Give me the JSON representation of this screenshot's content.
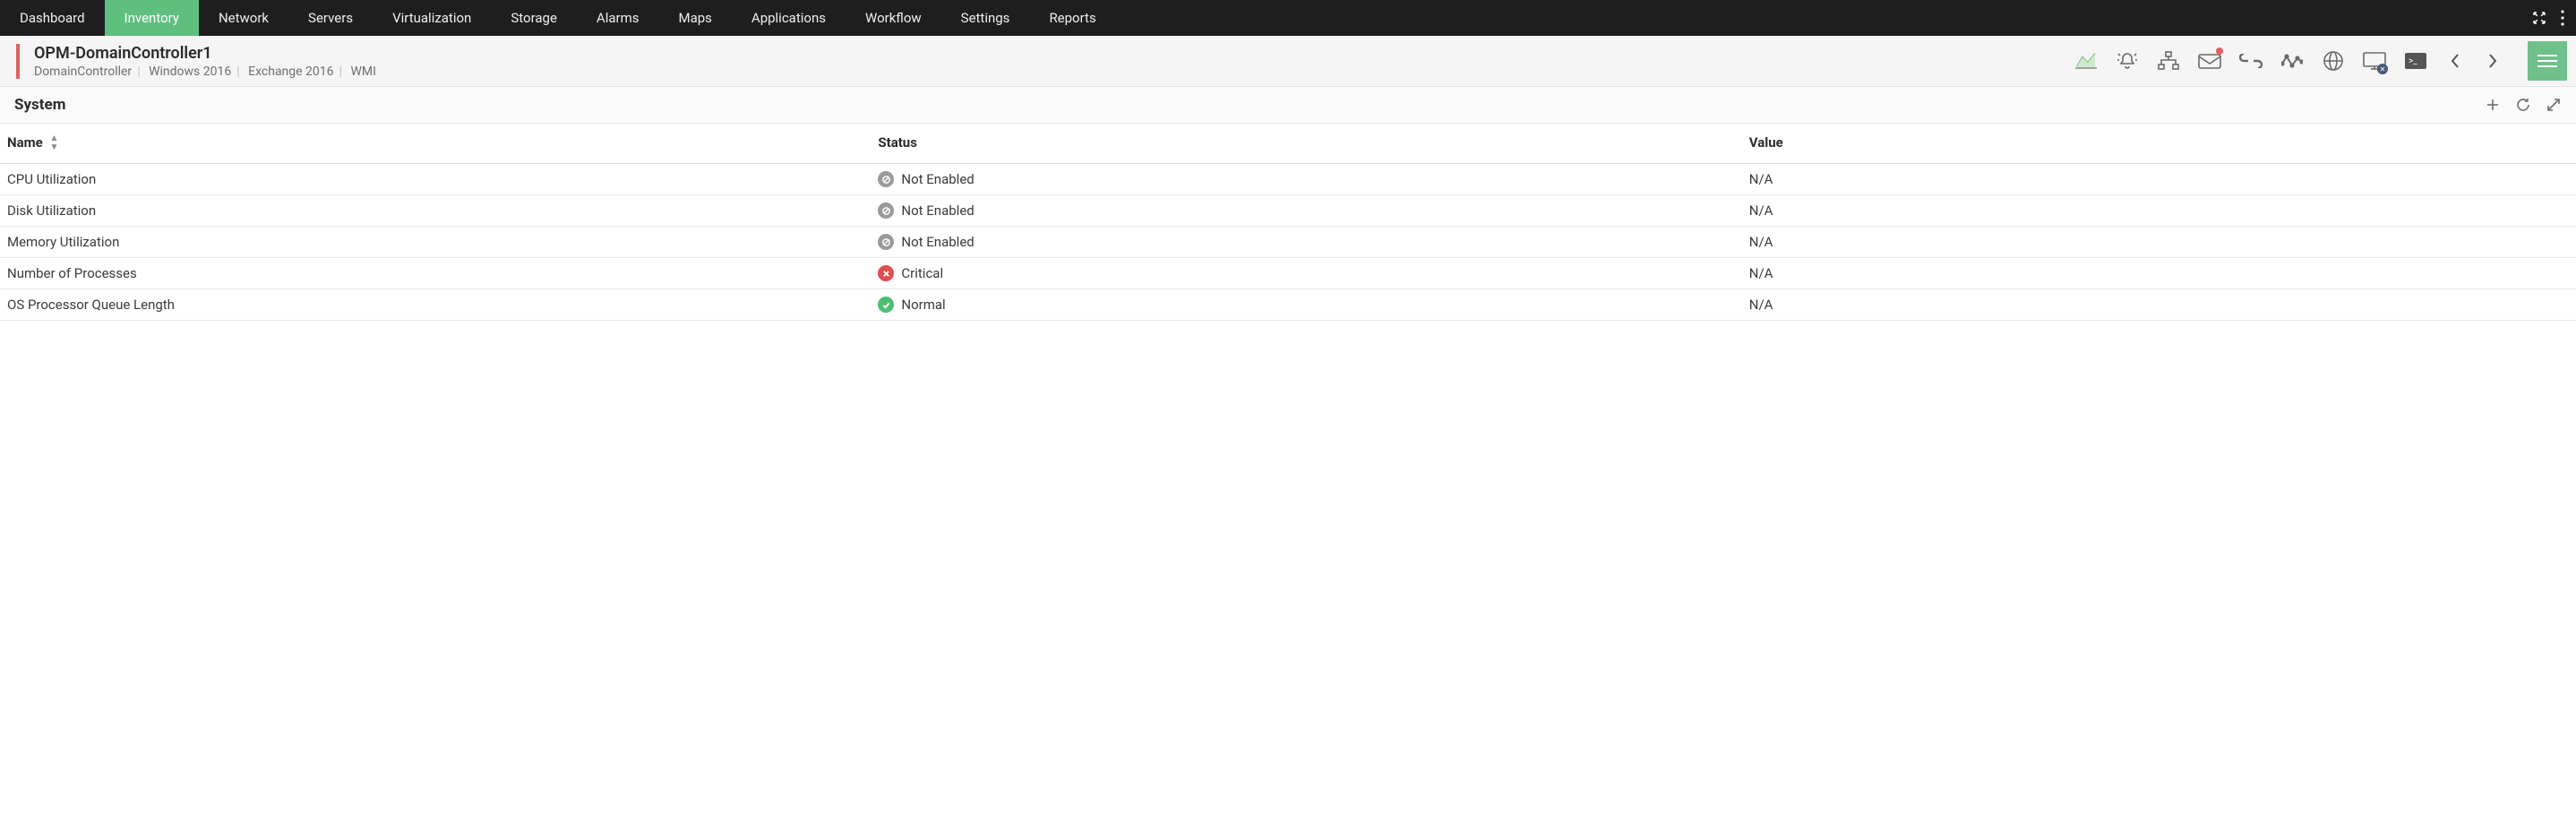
{
  "nav": {
    "items": [
      {
        "label": "Dashboard",
        "active": false
      },
      {
        "label": "Inventory",
        "active": true
      },
      {
        "label": "Network",
        "active": false
      },
      {
        "label": "Servers",
        "active": false
      },
      {
        "label": "Virtualization",
        "active": false
      },
      {
        "label": "Storage",
        "active": false
      },
      {
        "label": "Alarms",
        "active": false
      },
      {
        "label": "Maps",
        "active": false
      },
      {
        "label": "Applications",
        "active": false
      },
      {
        "label": "Workflow",
        "active": false
      },
      {
        "label": "Settings",
        "active": false
      },
      {
        "label": "Reports",
        "active": false
      }
    ],
    "bg_color": "#1e1e1e",
    "active_color": "#5fbf7f"
  },
  "header": {
    "title": "OPM-DomainController1",
    "subtitle_parts": [
      "DomainController",
      "Windows 2016",
      "Exchange 2016",
      "WMI"
    ],
    "accent_color": "#e26060",
    "icons": [
      "chart",
      "alert",
      "topology",
      "mail",
      "link",
      "activity",
      "globe",
      "desktop",
      "terminal",
      "prev",
      "next",
      "menu"
    ],
    "mail_badge": true
  },
  "panel": {
    "title": "System",
    "actions": [
      "add",
      "refresh",
      "expand"
    ]
  },
  "table": {
    "columns": [
      {
        "label": "Name",
        "sortable": true,
        "width_pct": 34
      },
      {
        "label": "Status",
        "sortable": false,
        "width_pct": 34
      },
      {
        "label": "Value",
        "sortable": false
      }
    ],
    "rows": [
      {
        "name": "CPU Utilization",
        "status_kind": "disabled",
        "status_label": "Not Enabled",
        "value": "N/A"
      },
      {
        "name": "Disk Utilization",
        "status_kind": "disabled",
        "status_label": "Not Enabled",
        "value": "N/A"
      },
      {
        "name": "Memory Utilization",
        "status_kind": "disabled",
        "status_label": "Not Enabled",
        "value": "N/A"
      },
      {
        "name": "Number of Processes",
        "status_kind": "critical",
        "status_label": "Critical",
        "value": "N/A"
      },
      {
        "name": "OS Processor Queue Length",
        "status_kind": "normal",
        "status_label": "Normal",
        "value": "N/A"
      }
    ],
    "status_colors": {
      "disabled": "#9a9a9a",
      "critical": "#e44d4d",
      "normal": "#4cbf73"
    },
    "border_color": "#ececec"
  },
  "colors": {
    "page_bg": "#ffffff",
    "text_primary": "#2b2b2b",
    "text_muted": "#6f6f6f",
    "hamburger_bg": "#6fc08b"
  }
}
